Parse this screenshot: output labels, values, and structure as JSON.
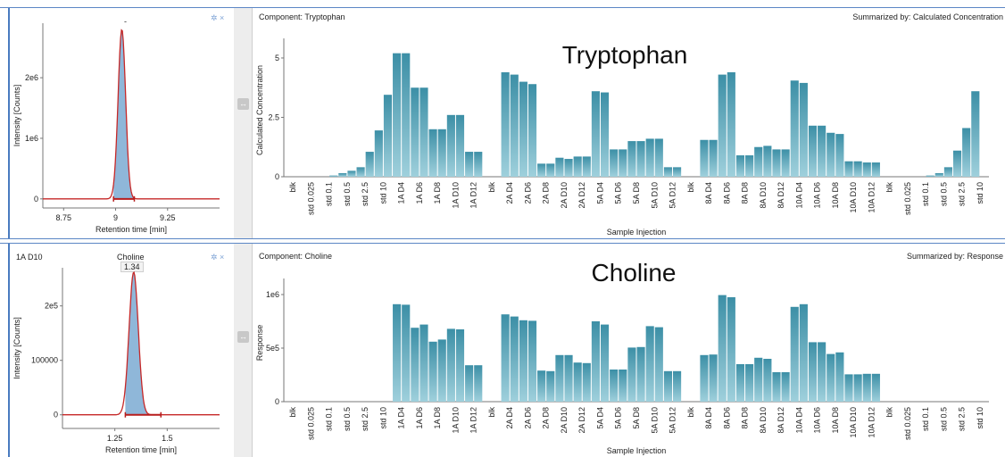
{
  "panels": [
    {
      "component_label": "Component: Tryptophan",
      "summarized_label": "Summarized by: Calculated Concentration",
      "overlay_title": "Tryptophan",
      "peak_tag": "-",
      "injection_label": "",
      "peak_name": "",
      "peak_value": "",
      "pin_icons": "✲ ×",
      "splitter_glyph": "↔"
    },
    {
      "component_label": "Component: Choline",
      "summarized_label": "Summarized by: Response",
      "overlay_title": "Choline",
      "peak_tag": "",
      "injection_label": "1A D10",
      "peak_name": "Choline",
      "peak_value": "1.34",
      "pin_icons": "✲ ×",
      "splitter_glyph": "↔"
    }
  ],
  "colors": {
    "bar": "#3c8fa6",
    "bar_light": "#9fd0dc",
    "peak_fill": "#8fb7d9",
    "peak_line": "#c62828",
    "baseline": "#b71c1c",
    "frame": "#5b86c5"
  },
  "chart_data": [
    {
      "type": "bar",
      "xlabel": "Sample Injection",
      "ylabel": "Calculated Concentration",
      "ylim": [
        0,
        5.6
      ],
      "yticks": [
        0,
        2.5,
        5
      ],
      "ytick_labels": [
        "0",
        "2.5",
        "5"
      ],
      "categories": [
        "blk",
        "std 0.025",
        "std 0.1",
        "std 0.5",
        "std 2.5",
        "std 10",
        "1A D4",
        "1A D6",
        "1A D8",
        "1A D10",
        "1A D12",
        "blk",
        "2A D4",
        "2A D6",
        "2A D8",
        "2A D10",
        "2A D12",
        "5A D4",
        "5A D6",
        "5A D8",
        "5A D10",
        "5A D12",
        "blk",
        "8A D4",
        "8A D6",
        "8A D8",
        "8A D10",
        "8A D12",
        "10A D4",
        "10A D6",
        "10A D8",
        "10A D10",
        "10A D12",
        "blk",
        "std 0.025",
        "std 0.1",
        "std 0.5",
        "std 2.5",
        "std 10"
      ],
      "values": [
        [
          0,
          0
        ],
        [
          0,
          0
        ],
        [
          0,
          0.05
        ],
        [
          0.15,
          0.25
        ],
        [
          0.4,
          1.05
        ],
        [
          1.95,
          3.45
        ],
        [
          5.2,
          5.2
        ],
        [
          3.75,
          3.75
        ],
        [
          2.0,
          2.0
        ],
        [
          2.6,
          2.6
        ],
        [
          1.05,
          1.05
        ],
        [
          0,
          0
        ],
        [
          4.4,
          4.3
        ],
        [
          4.0,
          3.9
        ],
        [
          0.55,
          0.55
        ],
        [
          0.8,
          0.75
        ],
        [
          0.85,
          0.85
        ],
        [
          3.6,
          3.55
        ],
        [
          1.15,
          1.15
        ],
        [
          1.5,
          1.5
        ],
        [
          1.6,
          1.6
        ],
        [
          0.4,
          0.4
        ],
        [
          0,
          0
        ],
        [
          1.55,
          1.55
        ],
        [
          4.3,
          4.4
        ],
        [
          0.9,
          0.9
        ],
        [
          1.25,
          1.3
        ],
        [
          1.15,
          1.15
        ],
        [
          4.05,
          3.95
        ],
        [
          2.15,
          2.15
        ],
        [
          1.85,
          1.8
        ],
        [
          0.65,
          0.65
        ],
        [
          0.6,
          0.6
        ],
        [
          0,
          0
        ],
        [
          0,
          0
        ],
        [
          0,
          0.05
        ],
        [
          0.15,
          0.4
        ],
        [
          1.1,
          2.05
        ],
        [
          3.6,
          0
        ]
      ]
    },
    {
      "type": "bar",
      "xlabel": "Sample Injection",
      "ylabel": "Response",
      "ylim": [
        0,
        1100000
      ],
      "yticks": [
        0,
        500000,
        1000000
      ],
      "ytick_labels": [
        "0",
        "5e5",
        "1e6"
      ],
      "categories": [
        "blk",
        "std 0.025",
        "std 0.1",
        "std 0.5",
        "std 2.5",
        "std 10",
        "1A D4",
        "1A D6",
        "1A D8",
        "1A D10",
        "1A D12",
        "blk",
        "2A D4",
        "2A D6",
        "2A D8",
        "2A D10",
        "2A D12",
        "5A D4",
        "5A D6",
        "5A D8",
        "5A D10",
        "5A D12",
        "blk",
        "8A D4",
        "8A D6",
        "8A D8",
        "8A D10",
        "8A D12",
        "10A D4",
        "10A D6",
        "10A D8",
        "10A D10",
        "10A D12",
        "blk",
        "std 0.025",
        "std 0.1",
        "std 0.5",
        "std 2.5",
        "std 10"
      ],
      "values": [
        [
          0,
          0
        ],
        [
          0,
          0
        ],
        [
          0,
          0
        ],
        [
          0,
          0
        ],
        [
          0,
          0
        ],
        [
          0,
          0
        ],
        [
          910000,
          905000
        ],
        [
          690000,
          720000
        ],
        [
          560000,
          580000
        ],
        [
          680000,
          675000
        ],
        [
          340000,
          340000
        ],
        [
          0,
          0
        ],
        [
          815000,
          795000
        ],
        [
          760000,
          755000
        ],
        [
          290000,
          285000
        ],
        [
          435000,
          435000
        ],
        [
          365000,
          360000
        ],
        [
          750000,
          720000
        ],
        [
          300000,
          300000
        ],
        [
          505000,
          510000
        ],
        [
          705000,
          695000
        ],
        [
          285000,
          285000
        ],
        [
          0,
          0
        ],
        [
          435000,
          440000
        ],
        [
          995000,
          975000
        ],
        [
          350000,
          350000
        ],
        [
          410000,
          400000
        ],
        [
          275000,
          275000
        ],
        [
          885000,
          910000
        ],
        [
          555000,
          555000
        ],
        [
          445000,
          460000
        ],
        [
          255000,
          255000
        ],
        [
          260000,
          260000
        ],
        [
          0,
          0
        ],
        [
          0,
          0
        ],
        [
          0,
          0
        ],
        [
          0,
          0
        ],
        [
          0,
          0
        ],
        [
          0,
          0
        ]
      ]
    },
    {
      "type": "line",
      "xlabel": "Retention time [min]",
      "ylabel": "Intensity [Counts]",
      "xlim": [
        8.65,
        9.5
      ],
      "ylim": [
        -150000,
        2900000
      ],
      "xticks": [
        8.75,
        9,
        9.25
      ],
      "xtick_labels": [
        "8.75",
        "9",
        "9.25"
      ],
      "yticks": [
        0,
        1000000,
        2000000
      ],
      "ytick_labels": [
        "0",
        "1e6",
        "2e6"
      ],
      "peak_apex_x": 9.03,
      "peak_height": 2800000,
      "peak_sigma": 0.018,
      "integration_start": 8.99,
      "integration_end": 9.09
    },
    {
      "type": "line",
      "xlabel": "Retention time [min]",
      "ylabel": "Intensity [Counts]",
      "xlim": [
        1.0,
        1.75
      ],
      "ylim": [
        -25000,
        270000
      ],
      "xticks": [
        1.25,
        1.5
      ],
      "xtick_labels": [
        "1.25",
        "1.5"
      ],
      "yticks": [
        0,
        100000,
        200000
      ],
      "ytick_labels": [
        "0",
        "100000",
        "2e5"
      ],
      "peak_apex_x": 1.34,
      "peak_height": 262000,
      "peak_sigma": 0.022,
      "integration_start": 1.3,
      "integration_end": 1.47
    }
  ]
}
